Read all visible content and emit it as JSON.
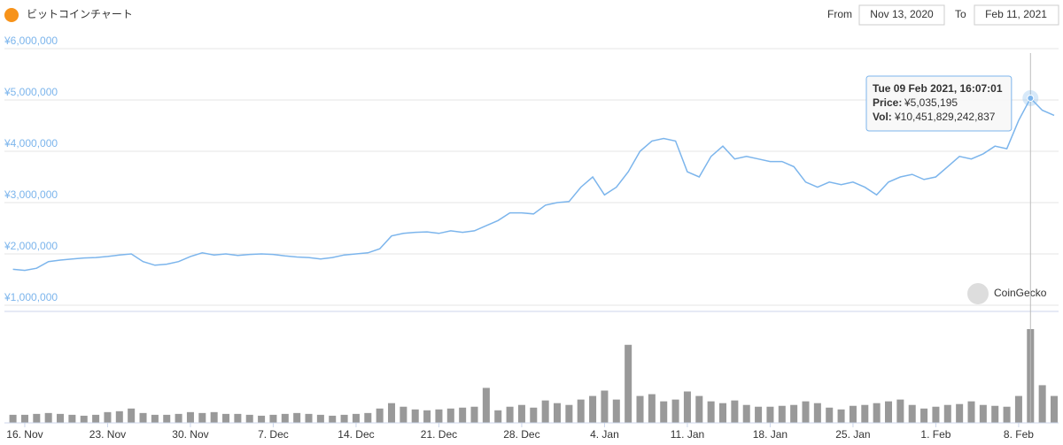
{
  "header": {
    "title": "ビットコインチャート",
    "from_label": "From",
    "from": "Nov 13, 2020",
    "to_label": "To",
    "to": "Feb 11, 2021"
  },
  "chart_data": {
    "type": "line",
    "categories": [
      null,
      "16. Nov",
      null,
      null,
      null,
      null,
      null,
      null,
      "23. Nov",
      null,
      null,
      null,
      null,
      null,
      null,
      "30. Nov",
      null,
      null,
      null,
      null,
      null,
      null,
      "7. Dec",
      null,
      null,
      null,
      null,
      null,
      null,
      "14. Dec",
      null,
      null,
      null,
      null,
      null,
      null,
      "21. Dec",
      null,
      null,
      null,
      null,
      null,
      null,
      "28. Dec",
      null,
      null,
      null,
      null,
      null,
      null,
      "4. Jan",
      null,
      null,
      null,
      null,
      null,
      null,
      "11. Jan",
      null,
      null,
      null,
      null,
      null,
      null,
      "18. Jan",
      null,
      null,
      null,
      null,
      null,
      null,
      "25. Jan",
      null,
      null,
      null,
      null,
      null,
      null,
      "1. Feb",
      null,
      null,
      null,
      null,
      null,
      null,
      "8. Feb",
      null,
      null,
      null
    ],
    "series": [
      {
        "name": "Price:",
        "type": "line",
        "color": "#7cb5ec",
        "values": [
          1700000,
          1680000,
          1720000,
          1850000,
          1880000,
          1900000,
          1920000,
          1930000,
          1950000,
          1980000,
          2000000,
          1850000,
          1780000,
          1800000,
          1850000,
          1950000,
          2020000,
          1980000,
          2000000,
          1970000,
          1990000,
          2000000,
          1990000,
          1960000,
          1940000,
          1930000,
          1900000,
          1930000,
          1980000,
          2000000,
          2020000,
          2100000,
          2350000,
          2400000,
          2420000,
          2430000,
          2400000,
          2450000,
          2420000,
          2450000,
          2550000,
          2650000,
          2800000,
          2800000,
          2780000,
          2950000,
          3000000,
          3020000,
          3300000,
          3500000,
          3150000,
          3300000,
          3600000,
          4000000,
          4200000,
          4250000,
          4200000,
          3600000,
          3500000,
          3900000,
          4100000,
          3850000,
          3900000,
          3850000,
          3800000,
          3800000,
          3700000,
          3400000,
          3300000,
          3400000,
          3350000,
          3400000,
          3300000,
          3150000,
          3400000,
          3500000,
          3550000,
          3450000,
          3500000,
          3700000,
          3900000,
          3850000,
          3950000,
          4100000,
          4050000,
          4600000,
          5035195,
          4800000,
          4700000
        ]
      },
      {
        "name": "Vol:",
        "type": "bar",
        "color": "#999999",
        "values": [
          900000000000.0,
          900000000000.0,
          1000000000000.0,
          1100000000000.0,
          1000000000000.0,
          900000000000.0,
          800000000000.0,
          900000000000.0,
          1200000000000.0,
          1300000000000.0,
          1600000000000.0,
          1100000000000.0,
          900000000000.0,
          900000000000.0,
          1000000000000.0,
          1200000000000.0,
          1100000000000.0,
          1200000000000.0,
          1000000000000.0,
          1000000000000.0,
          900000000000.0,
          800000000000.0,
          900000000000.0,
          1000000000000.0,
          1100000000000.0,
          1000000000000.0,
          900000000000.0,
          800000000000.0,
          900000000000.0,
          1000000000000.0,
          1100000000000.0,
          1600000000000.0,
          2200000000000.0,
          1800000000000.0,
          1500000000000.0,
          1400000000000.0,
          1500000000000.0,
          1600000000000.0,
          1700000000000.0,
          1800000000000.0,
          3900000000000.0,
          1400000000000.0,
          1800000000000.0,
          2000000000000.0,
          1700000000000.0,
          2500000000000.0,
          2200000000000.0,
          2000000000000.0,
          2600000000000.0,
          3000000000000.0,
          3600000000000.0,
          2600000000000.0,
          8700000000000.0,
          3000000000000.0,
          3200000000000.0,
          2400000000000.0,
          2600000000000.0,
          3500000000000.0,
          3000000000000.0,
          2400000000000.0,
          2200000000000.0,
          2500000000000.0,
          2000000000000.0,
          1800000000000.0,
          1800000000000.0,
          1900000000000.0,
          2000000000000.0,
          2400000000000.0,
          2200000000000.0,
          1700000000000.0,
          1500000000000.0,
          1900000000000.0,
          2000000000000.0,
          2200000000000.0,
          2400000000000.0,
          2600000000000.0,
          2000000000000.0,
          1600000000000.0,
          1800000000000.0,
          2000000000000.0,
          2100000000000.0,
          2400000000000.0,
          2000000000000.0,
          1900000000000.0,
          1800000000000.0,
          3000000000000.0,
          10451829242837,
          4200000000000.0,
          3000000000000.0
        ]
      }
    ],
    "ylim": [
      1000000,
      6000000
    ],
    "yticks": [
      {
        "value": 1000000,
        "label": "¥1,000,000"
      },
      {
        "value": 2000000,
        "label": "¥2,000,000"
      },
      {
        "value": 3000000,
        "label": "¥3,000,000"
      },
      {
        "value": 4000000,
        "label": "¥4,000,000"
      },
      {
        "value": 5000000,
        "label": "¥5,000,000"
      },
      {
        "value": 6000000,
        "label": "¥6,000,000"
      }
    ],
    "grid": true,
    "tooltip": {
      "date": "Tue 09 Feb 2021, 16:07:01",
      "price": "¥5,035,195",
      "volume": "¥10,451,829,242,837"
    },
    "watermark": "CoinGecko"
  }
}
